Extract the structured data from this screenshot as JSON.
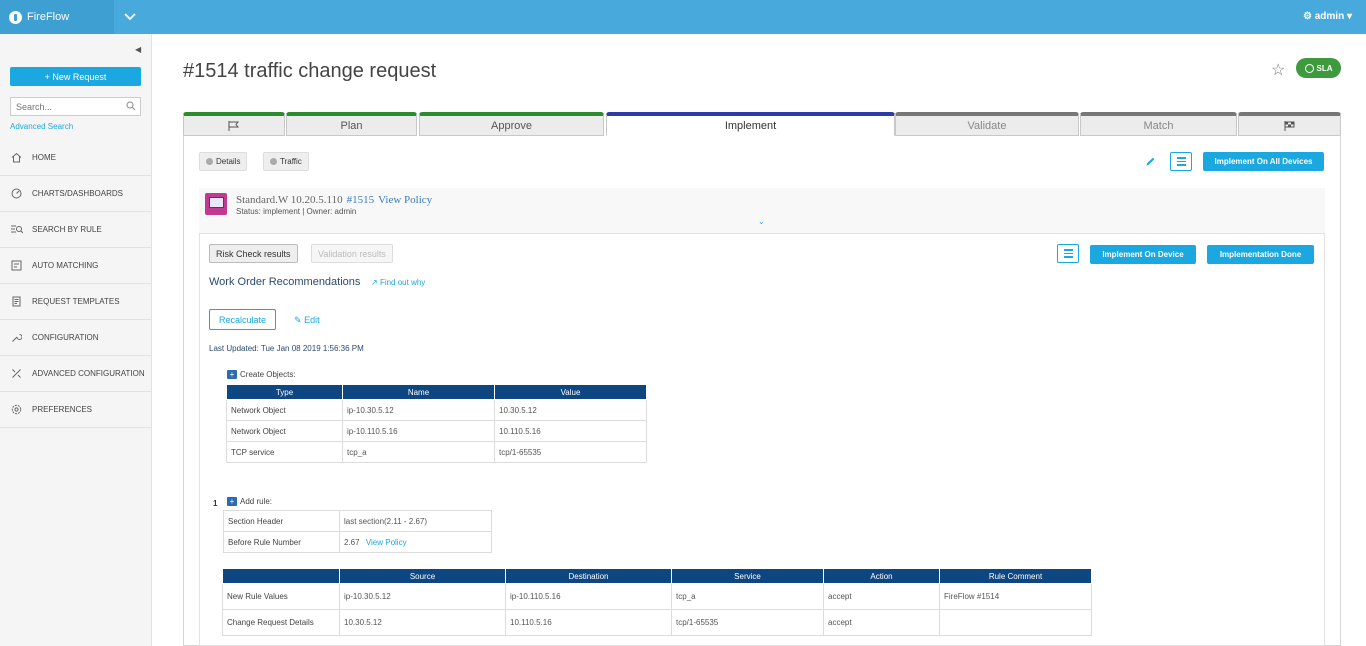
{
  "app": {
    "name": "FireFlow",
    "user": "admin"
  },
  "sidebar": {
    "new_request": "+ New Request",
    "search_placeholder": "Search...",
    "advanced_search": "Advanced Search",
    "items": [
      {
        "label": "HOME",
        "icon": "home-icon"
      },
      {
        "label": "CHARTS/DASHBOARDS",
        "icon": "dashboard-icon"
      },
      {
        "label": "SEARCH BY RULE",
        "icon": "search-rule-icon"
      },
      {
        "label": "AUTO MATCHING",
        "icon": "auto-matching-icon"
      },
      {
        "label": "REQUEST TEMPLATES",
        "icon": "template-icon"
      },
      {
        "label": "CONFIGURATION",
        "icon": "wrench-icon"
      },
      {
        "label": "ADVANCED CONFIGURATION",
        "icon": "tools-icon"
      },
      {
        "label": "PREFERENCES",
        "icon": "gear-icon"
      }
    ]
  },
  "page": {
    "title": "#1514 traffic change request",
    "sla": "SLA"
  },
  "tabs": [
    {
      "label": "",
      "icon": "flag-icon"
    },
    {
      "label": "Plan"
    },
    {
      "label": "Approve"
    },
    {
      "label": "Implement"
    },
    {
      "label": "Validate"
    },
    {
      "label": "Match"
    },
    {
      "label": "",
      "icon": "checkered-flag-icon"
    }
  ],
  "toolbar": {
    "details": "Details",
    "traffic": "Traffic",
    "implement_all": "Implement On All Devices"
  },
  "device": {
    "name": "Standard.W 10.20.5.110",
    "number": "#1515",
    "view_policy": "View Policy",
    "status": "Status: implement | Owner: admin"
  },
  "work_order": {
    "risk_check": "Risk Check results",
    "validation": "Validation results",
    "implement_device": "Implement On Device",
    "implementation_done": "Implementation Done",
    "title": "Work Order Recommendations",
    "find_out": "Find out why",
    "recalculate": "Recalculate",
    "edit": "Edit",
    "last_updated": "Last Updated: Tue Jan 08 2019 1:56:36 PM"
  },
  "create_objects": {
    "label": "Create Objects:",
    "headers": [
      "Type",
      "Name",
      "Value"
    ],
    "rows": [
      [
        "Network Object",
        "ip-10.30.5.12",
        "10.30.5.12"
      ],
      [
        "Network Object",
        "ip-10.110.5.16",
        "10.110.5.16"
      ],
      [
        "TCP service",
        "tcp_a",
        "tcp/1-65535"
      ]
    ]
  },
  "add_rule": {
    "number": "1",
    "label": "Add rule:",
    "section_header_label": "Section Header",
    "section_header_value": "last section(2.11 - 2.67)",
    "before_rule_label": "Before Rule Number",
    "before_rule_value": "2.67",
    "before_rule_link": "View Policy"
  },
  "rule_table": {
    "headers": [
      "",
      "Source",
      "Destination",
      "Service",
      "Action",
      "Rule Comment"
    ],
    "rows": [
      [
        "New Rule Values",
        "ip-10.30.5.12",
        "ip-10.110.5.16",
        "tcp_a",
        "accept",
        "FireFlow #1514"
      ],
      [
        "Change Request Details",
        "10.30.5.12",
        "10.110.5.16",
        "tcp/1-65535",
        "accept",
        ""
      ]
    ]
  }
}
